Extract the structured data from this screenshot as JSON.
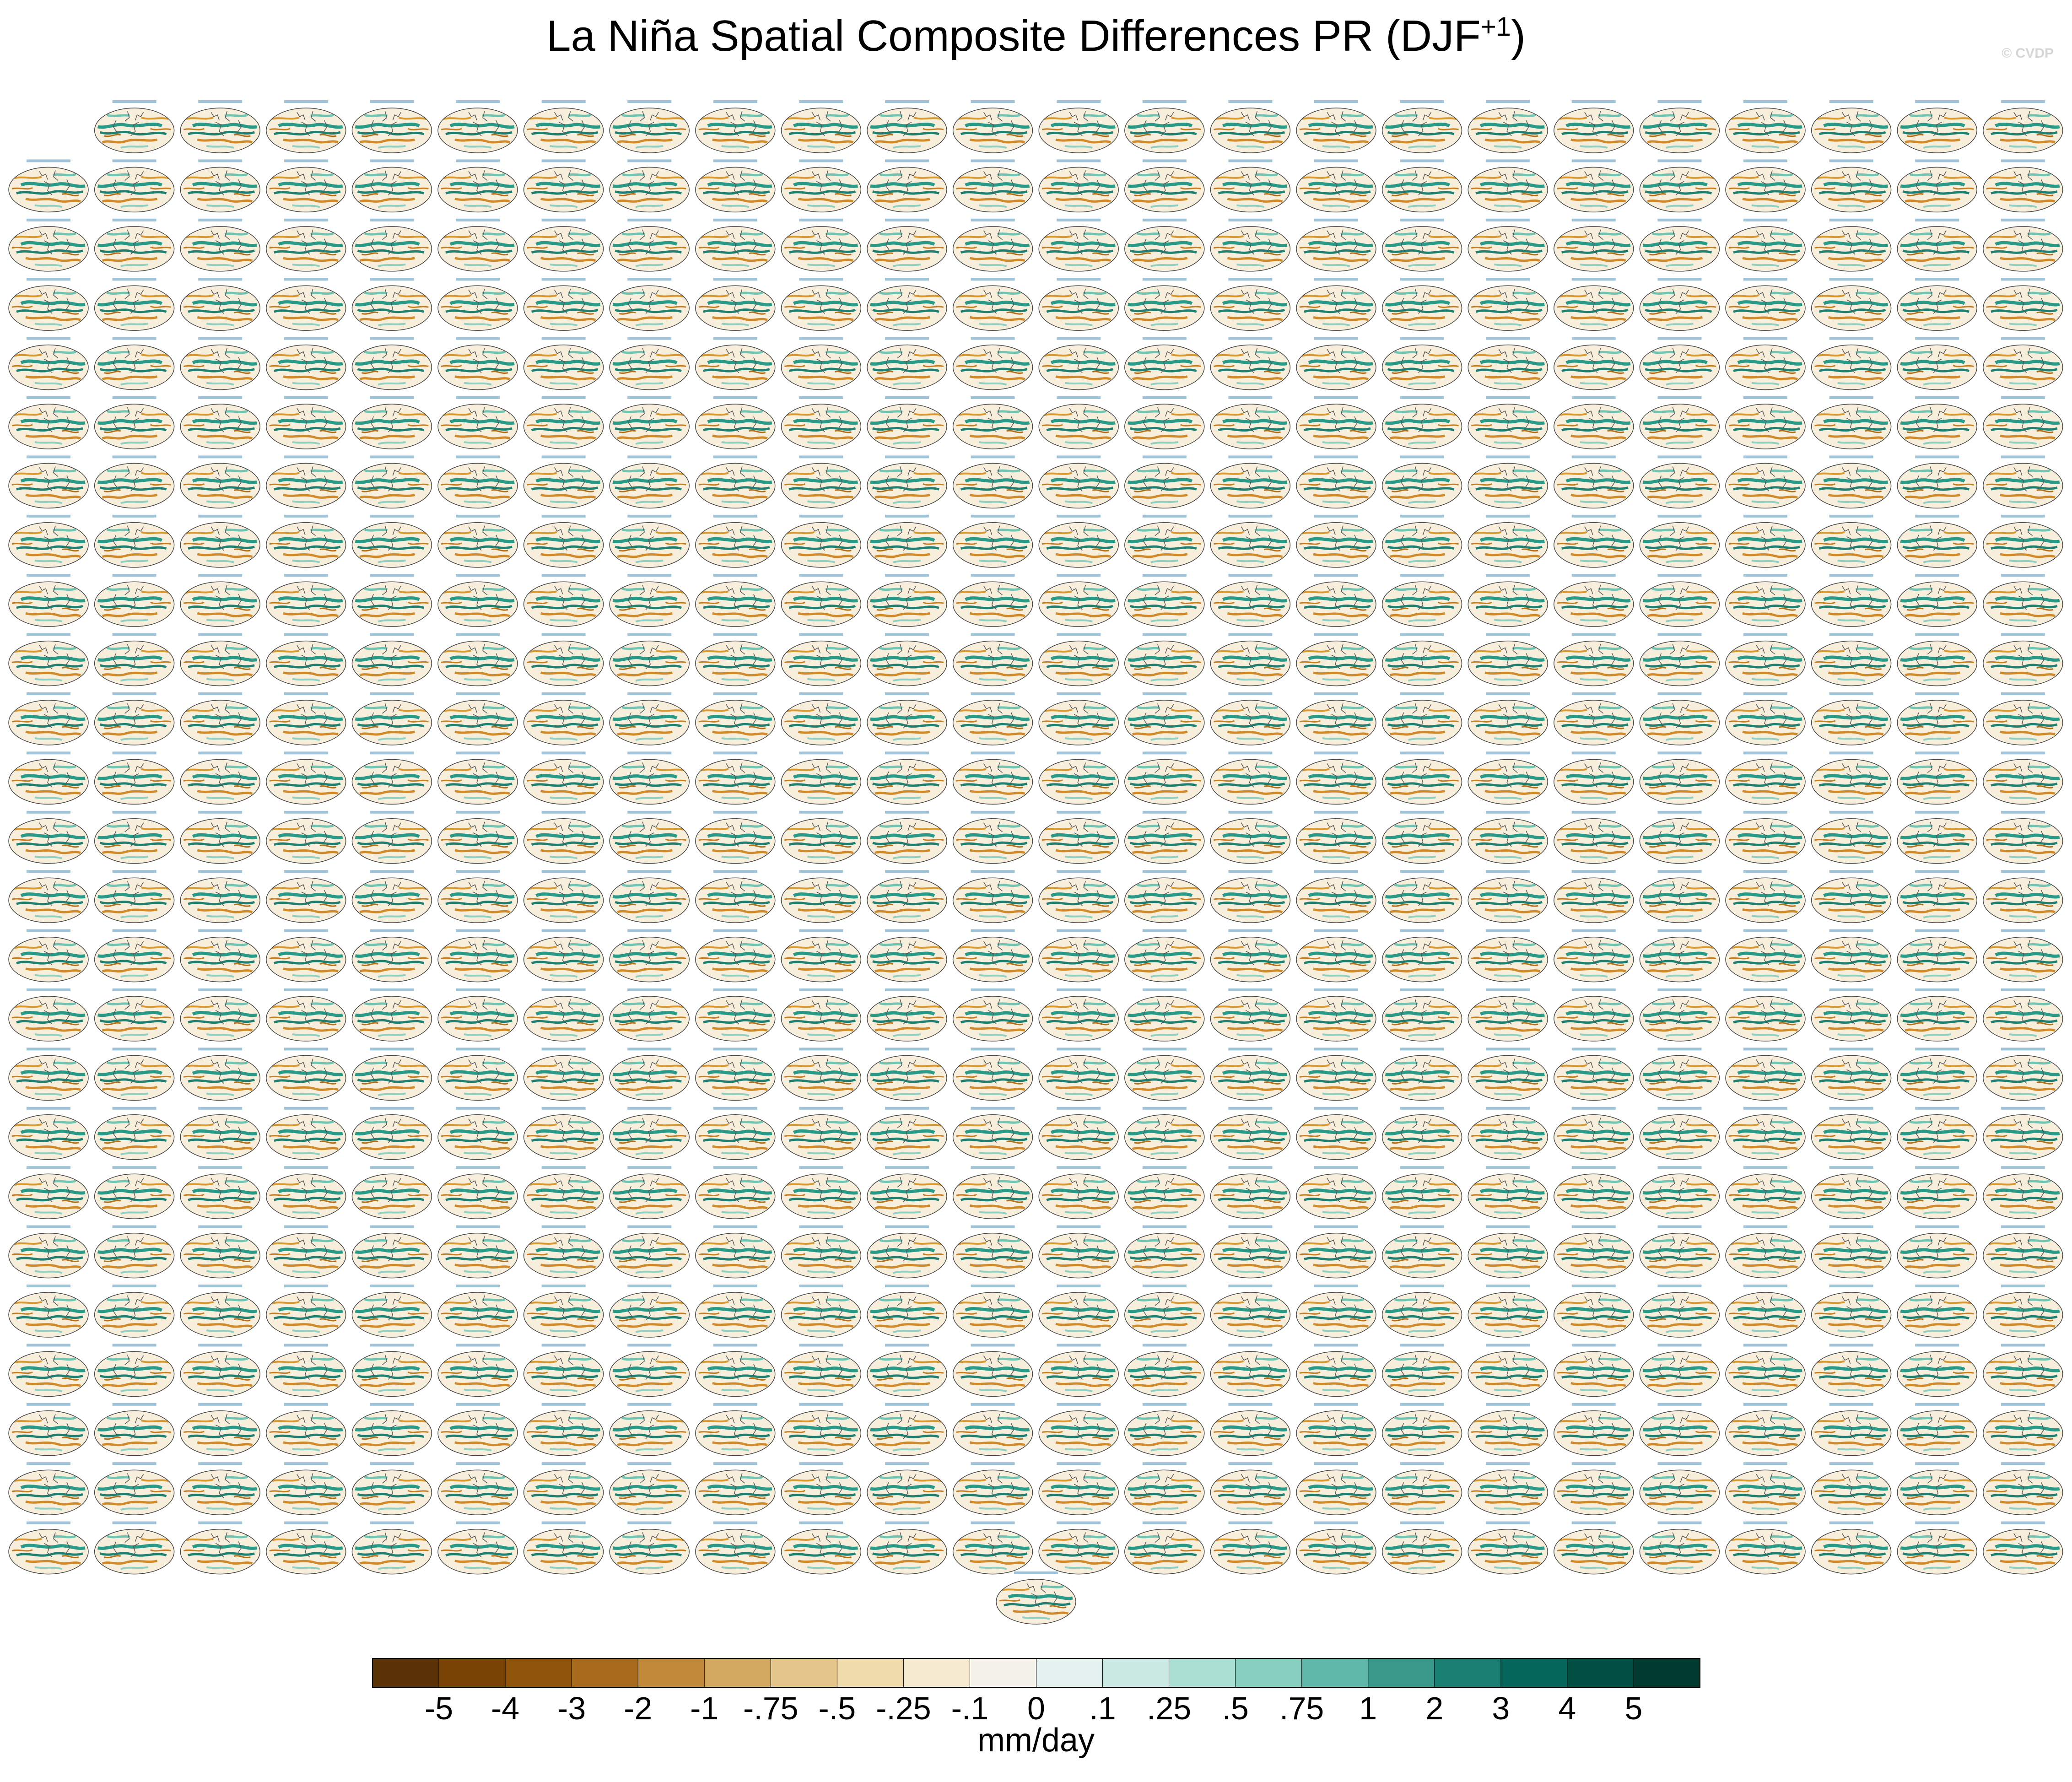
{
  "title": "La Niña Spatial Composite Differences PR (DJF",
  "title_sup": "+1",
  "title_close": ")",
  "watermark": "© CVDP",
  "chart_data": {
    "type": "heatmap",
    "description_kind": "small-multiples",
    "grid": {
      "rows": 25,
      "columns": 24,
      "first_row_panels": 23,
      "extra_panels": 1
    },
    "colorbar": {
      "units": "mm/day",
      "tick_labels": [
        "-5",
        "-4",
        "-3",
        "-2",
        "-1",
        "-.75",
        "-.5",
        "-.25",
        "-.1",
        "0",
        ".1",
        ".25",
        ".5",
        ".75",
        "1",
        "2",
        "3",
        "4",
        "5"
      ],
      "levels": [
        -5,
        -4,
        -3,
        -2,
        -1,
        -0.75,
        -0.5,
        -0.25,
        -0.1,
        0,
        0.1,
        0.25,
        0.5,
        0.75,
        1,
        2,
        3,
        4,
        5
      ],
      "colors": [
        "#5a3005",
        "#7a4306",
        "#8f5409",
        "#a86a1c",
        "#c08a38",
        "#d3a960",
        "#e3c589",
        "#efdbac",
        "#f6ebd1",
        "#f4f1e9",
        "#e5f1ef",
        "#cbe9e3",
        "#aadfd4",
        "#87d0c1",
        "#5fb7a7",
        "#39998b",
        "#1a8071",
        "#04665a",
        "#014f43",
        "#013a2e"
      ]
    }
  }
}
